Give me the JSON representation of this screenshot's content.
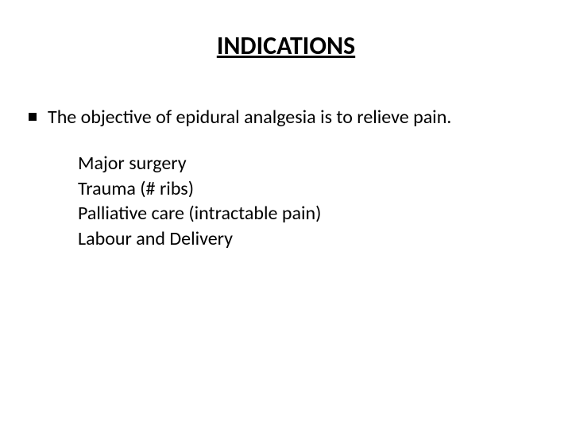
{
  "title": {
    "text": "INDICATIONS",
    "fontsize": 32,
    "weight": 700,
    "underline": true,
    "color": "#000000"
  },
  "bullet": {
    "marker_color": "#000000",
    "marker_size": 10,
    "text": "The objective of epidural analgesia is to relieve pain.",
    "fontsize": 24,
    "color": "#000000"
  },
  "sublist": {
    "fontsize": 24,
    "color": "#000000",
    "items": [
      "Major surgery",
      "Trauma (# ribs)",
      "Palliative care (intractable pain)",
      "Labour and Delivery"
    ]
  },
  "background_color": "#ffffff"
}
